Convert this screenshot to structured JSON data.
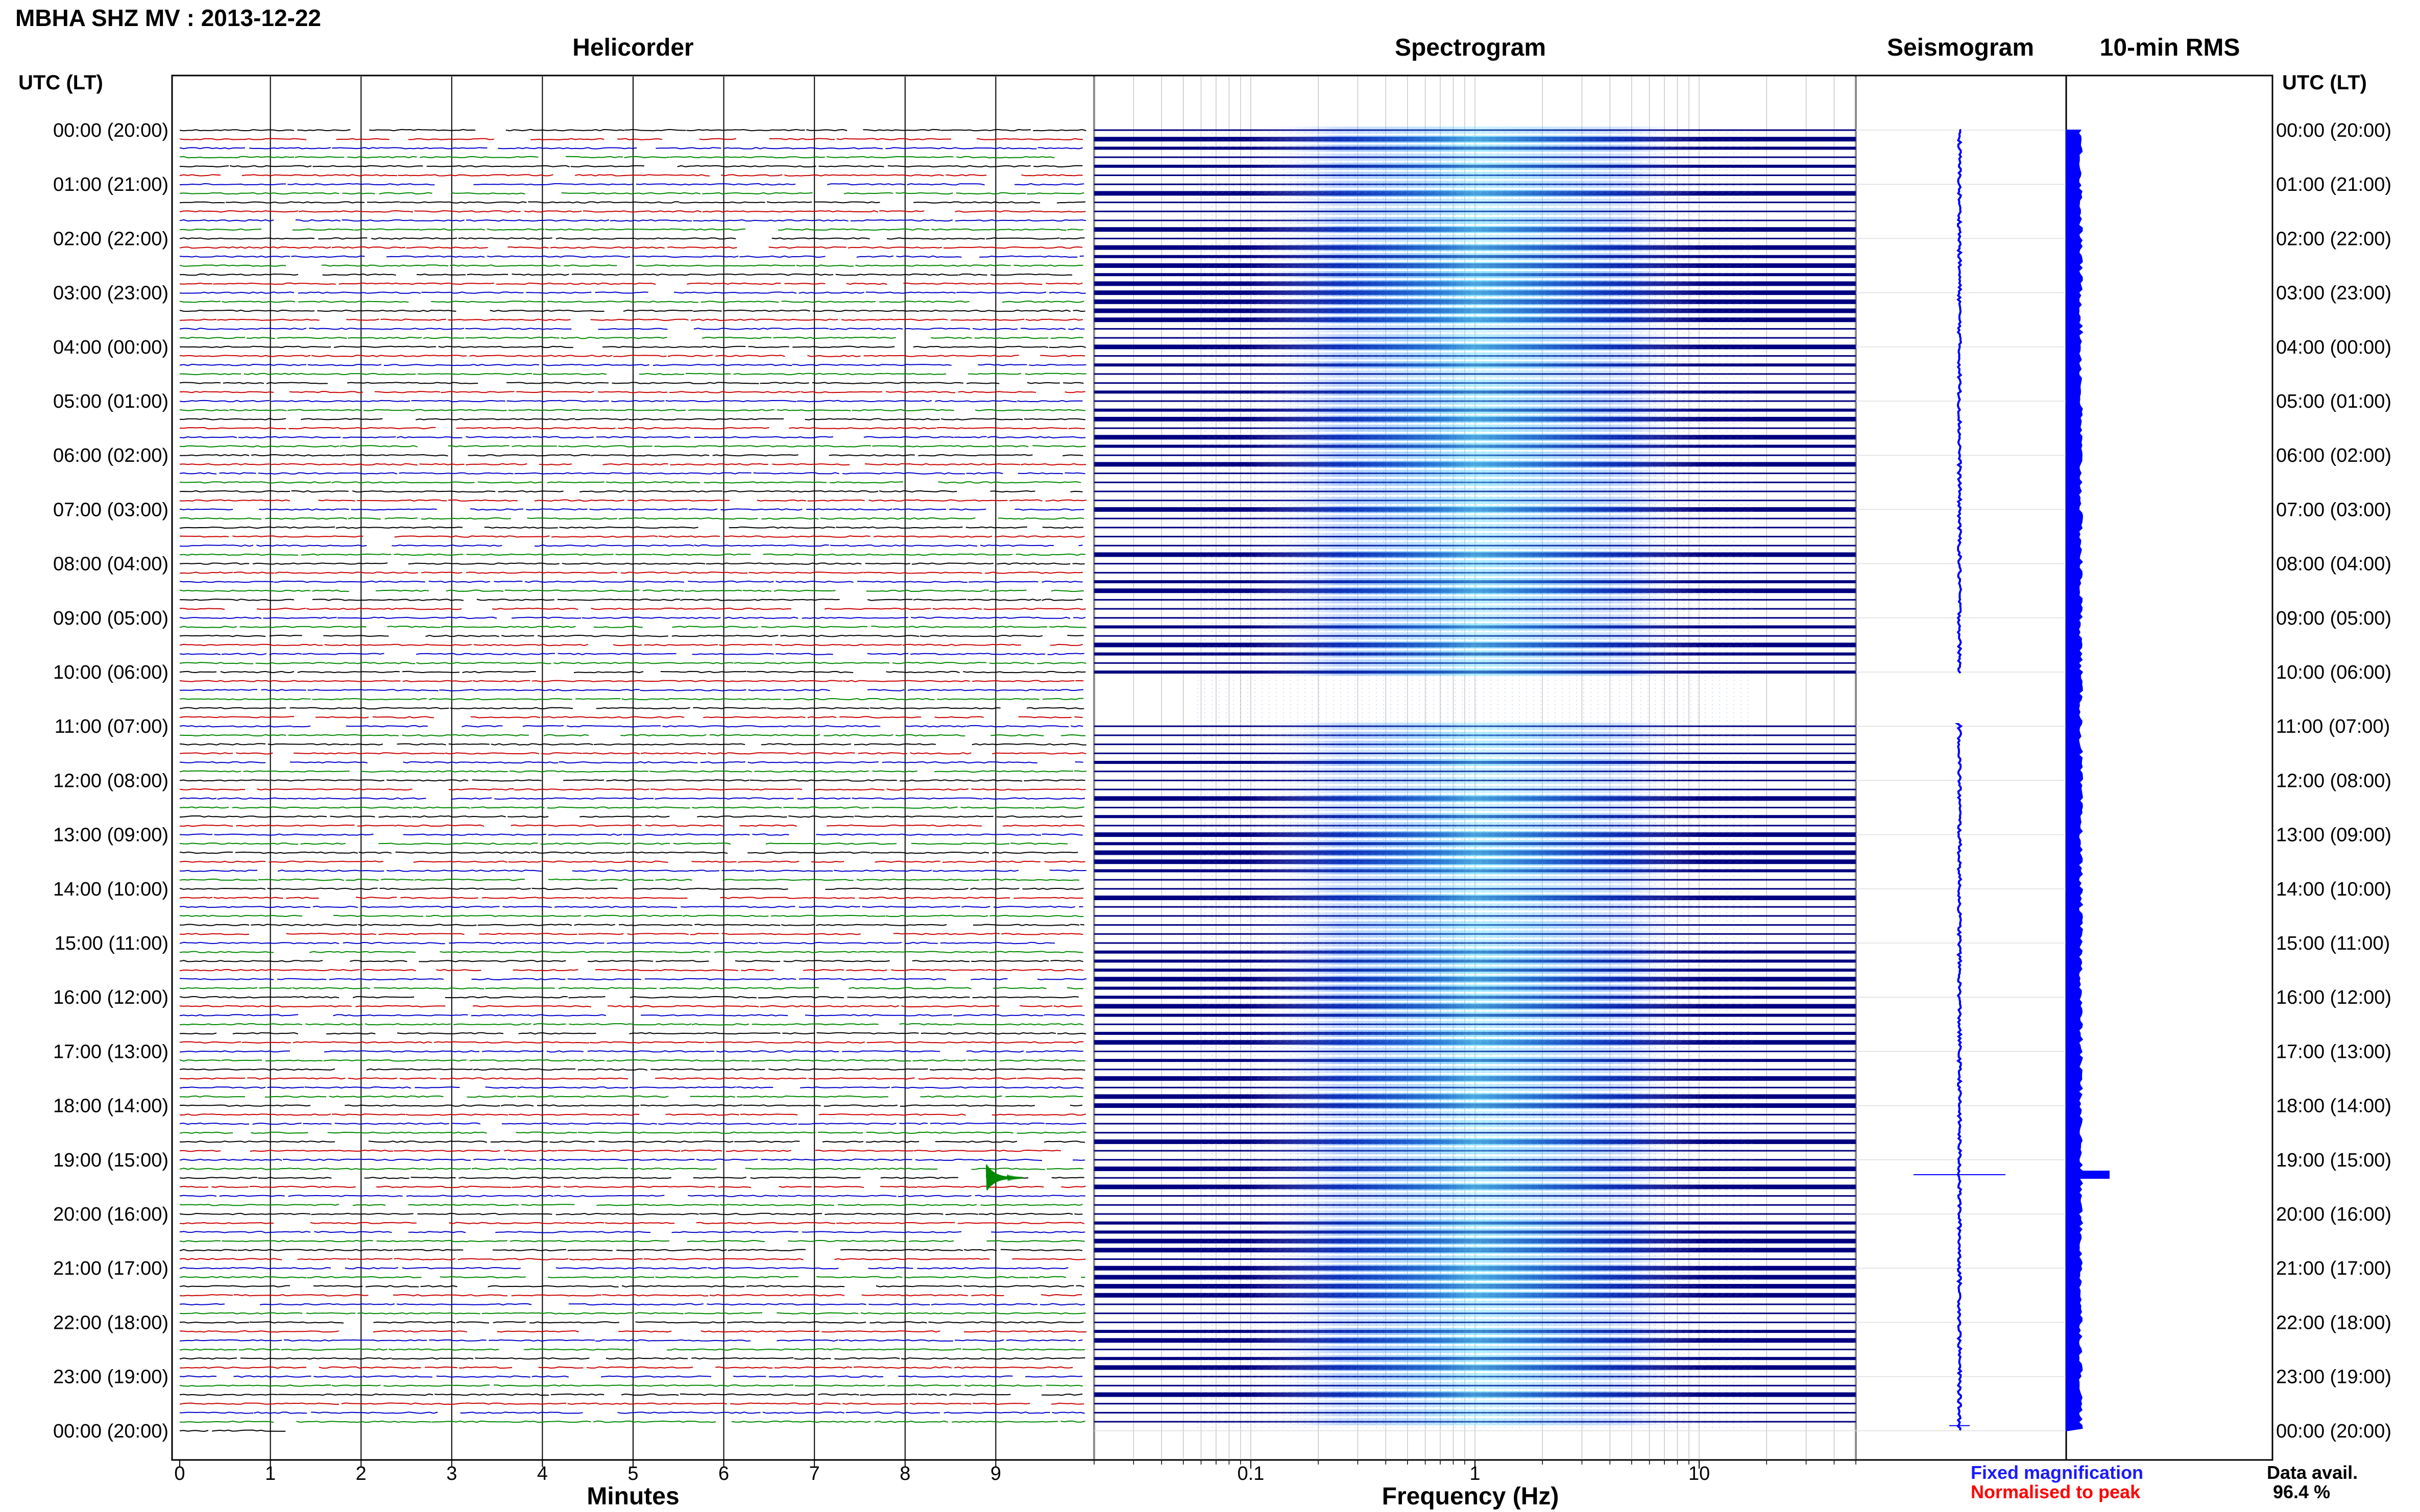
{
  "title": "MBHA SHZ MV : 2013-12-22",
  "panels": {
    "helicorder": "Helicorder",
    "spectrogram": "Spectrogram",
    "seismogram": "Seismogram",
    "rms": "10-min RMS"
  },
  "utc_header_left": "UTC (LT)",
  "utc_header_right": "UTC (LT)",
  "x_axes": {
    "helicorder_xlabel": "Minutes",
    "spectrogram_xlabel": "Frequency (Hz)"
  },
  "legend": {
    "fixed": "Fixed magnification",
    "normalised": "Normalised to peak",
    "fixed_color": "#1a1aff",
    "normalised_color": "#ff0000"
  },
  "data_avail": {
    "label": "Data avail.",
    "value": "96.4 %"
  },
  "colors": {
    "trace_cycle": [
      "#000000",
      "#cc0000",
      "#0000cc",
      "#008800"
    ],
    "spectrogram_bands": "#000080",
    "spectrogram_hot": "#66e0ff",
    "rms": "#0000ff"
  },
  "chart_data": {
    "type": "heatmap",
    "time_labels": [
      "00:00 (20:00)",
      "01:00 (21:00)",
      "02:00 (22:00)",
      "03:00 (23:00)",
      "04:00 (00:00)",
      "05:00 (01:00)",
      "06:00 (02:00)",
      "07:00 (03:00)",
      "08:00 (04:00)",
      "09:00 (05:00)",
      "10:00 (06:00)",
      "11:00 (07:00)",
      "12:00 (08:00)",
      "13:00 (09:00)",
      "14:00 (10:00)",
      "15:00 (11:00)",
      "16:00 (12:00)",
      "17:00 (13:00)",
      "18:00 (14:00)",
      "19:00 (15:00)",
      "20:00 (16:00)",
      "21:00 (17:00)",
      "22:00 (18:00)",
      "23:00 (19:00)",
      "00:00 (20:00)"
    ],
    "helicorder": {
      "minute_ticks": [
        "0",
        "1",
        "2",
        "3",
        "4",
        "5",
        "6",
        "7",
        "8",
        "9"
      ],
      "xlim": [
        0,
        10
      ],
      "lines_per_hour": 6,
      "event": {
        "hour": 19,
        "minute": 8.9
      }
    },
    "spectrogram": {
      "xscale": "log",
      "xlim": [
        0.02,
        50
      ],
      "tick_labels": [
        "0.1",
        "1",
        "10"
      ],
      "tick_values": [
        0.1,
        1,
        10
      ],
      "bright_band_hz": [
        0.2,
        5
      ]
    },
    "rms": {
      "baseline": 1,
      "peak_hour": 19.2,
      "peak_value": 3.4
    },
    "data_availability_percent": 96.4
  }
}
